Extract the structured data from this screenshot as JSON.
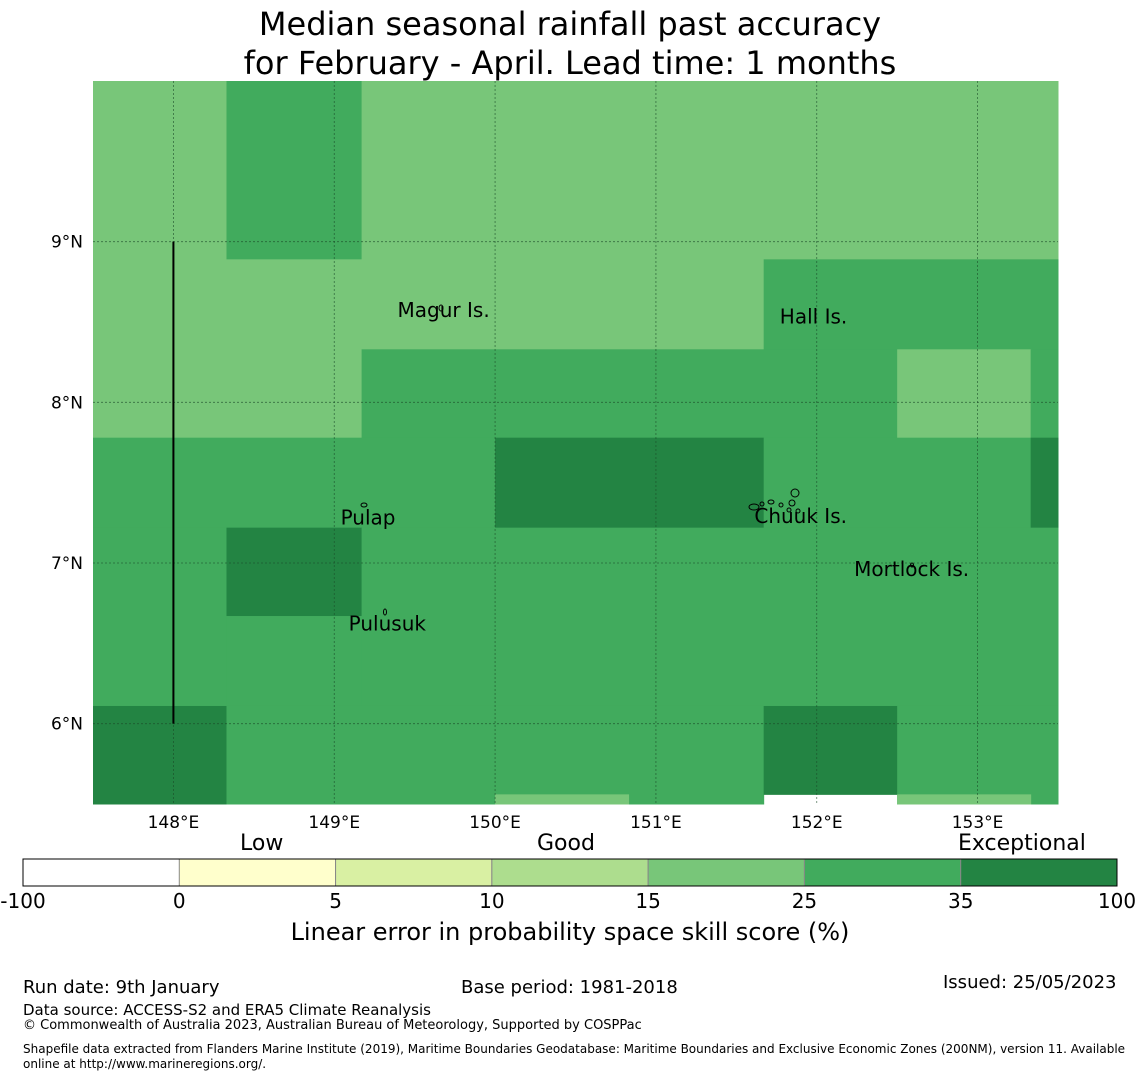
{
  "title": {
    "line1": "Median seasonal rainfall past accuracy",
    "line2": "for February - April. Lead time: 1 months"
  },
  "map": {
    "lon_range": [
      147.5,
      153.5
    ],
    "lat_range": [
      5.5,
      10.0
    ],
    "lon_ticks": [
      148,
      149,
      150,
      151,
      152,
      153
    ],
    "lon_tick_labels": [
      "148°E",
      "149°E",
      "150°E",
      "151°E",
      "152°E",
      "153°E"
    ],
    "lat_ticks": [
      6,
      7,
      8,
      9
    ],
    "lat_tick_labels": [
      "6°N",
      "7°N",
      "8°N",
      "9°N"
    ],
    "colors": {
      "c25": "#78c679",
      "c35": "#41ab5d",
      "c100": "#238443"
    },
    "skill_cells": [
      {
        "lon": [
          147.5,
          148.33
        ],
        "lat": [
          7.78,
          10.0
        ],
        "cls": "c25"
      },
      {
        "lon": [
          148.33,
          149.17
        ],
        "lat": [
          8.89,
          10.0
        ],
        "cls": "c35"
      },
      {
        "lon": [
          148.33,
          149.17
        ],
        "lat": [
          7.78,
          8.89
        ],
        "cls": "c25"
      },
      {
        "lon": [
          149.17,
          153.5
        ],
        "lat": [
          8.89,
          10.0
        ],
        "cls": "c25"
      },
      {
        "lon": [
          149.17,
          151.67
        ],
        "lat": [
          8.33,
          8.89
        ],
        "cls": "c25"
      },
      {
        "lon": [
          151.67,
          153.5
        ],
        "lat": [
          8.33,
          8.89
        ],
        "cls": "c35"
      },
      {
        "lon": [
          149.17,
          152.5
        ],
        "lat": [
          7.78,
          8.33
        ],
        "cls": "c35"
      },
      {
        "lon": [
          152.5,
          153.33
        ],
        "lat": [
          7.78,
          8.33
        ],
        "cls": "c25"
      },
      {
        "lon": [
          153.33,
          153.5
        ],
        "lat": [
          7.78,
          8.33
        ],
        "cls": "c35"
      },
      {
        "lon": [
          147.5,
          150.0
        ],
        "lat": [
          7.22,
          7.78
        ],
        "cls": "c35"
      },
      {
        "lon": [
          150.0,
          151.67
        ],
        "lat": [
          7.22,
          7.78
        ],
        "cls": "c100"
      },
      {
        "lon": [
          151.67,
          153.33
        ],
        "lat": [
          7.22,
          7.78
        ],
        "cls": "c35"
      },
      {
        "lon": [
          153.33,
          153.5
        ],
        "lat": [
          7.22,
          7.78
        ],
        "cls": "c100"
      },
      {
        "lon": [
          147.5,
          148.33
        ],
        "lat": [
          6.11,
          7.22
        ],
        "cls": "c35"
      },
      {
        "lon": [
          148.33,
          149.17
        ],
        "lat": [
          6.67,
          7.22
        ],
        "cls": "c100"
      },
      {
        "lon": [
          148.33,
          149.17
        ],
        "lat": [
          6.11,
          6.67
        ],
        "cls": "c35"
      },
      {
        "lon": [
          149.17,
          153.5
        ],
        "lat": [
          6.11,
          7.22
        ],
        "cls": "c35"
      },
      {
        "lon": [
          147.5,
          148.33
        ],
        "lat": [
          5.5,
          6.11
        ],
        "cls": "c100"
      },
      {
        "lon": [
          148.33,
          151.67
        ],
        "lat": [
          5.5,
          6.11
        ],
        "cls": "c35"
      },
      {
        "lon": [
          151.67,
          152.5
        ],
        "lat": [
          5.56,
          6.11
        ],
        "cls": "c100"
      },
      {
        "lon": [
          152.5,
          153.5
        ],
        "lat": [
          5.5,
          6.11
        ],
        "cls": "c35"
      },
      {
        "lon": [
          150.0,
          150.83
        ],
        "lat": [
          5.5,
          5.56
        ],
        "cls": "c25"
      },
      {
        "lon": [
          152.5,
          153.33
        ],
        "lat": [
          5.5,
          5.56
        ],
        "cls": "c25"
      }
    ],
    "boundary_line": {
      "lon": 148.0,
      "lat": [
        6.0,
        9.0
      ]
    },
    "places": [
      {
        "name": "Magur Is.",
        "lon": 149.68,
        "lat": 8.53
      },
      {
        "name": "Hall Is.",
        "lon": 151.98,
        "lat": 8.49
      },
      {
        "name": "Pulap",
        "lon": 149.21,
        "lat": 7.24
      },
      {
        "name": "Chuuk Is.",
        "lon": 151.9,
        "lat": 7.25
      },
      {
        "name": "Mortlock Is.",
        "lon": 152.59,
        "lat": 6.92
      },
      {
        "name": "Pulusuk",
        "lon": 149.33,
        "lat": 6.58
      }
    ]
  },
  "colorbar": {
    "category_labels": [
      "Low",
      "Good",
      "Exceptional"
    ],
    "ticks": [
      "-100",
      "0",
      "5",
      "10",
      "15",
      "25",
      "35",
      "100"
    ],
    "colors": [
      "#ffffff",
      "#ffffcc",
      "#d9f0a3",
      "#addd8e",
      "#78c679",
      "#41ab5d",
      "#238443"
    ],
    "title": "Linear error in probability space skill score (%)"
  },
  "footer": {
    "run_date": "Run date: 9th January",
    "base_period": "Base period: 1981-2018",
    "issued": "Issued: 25/05/2023",
    "data_source": "Data source: ACCESS-S2 and ERA5 Climate Reanalysis",
    "copyright": "© Commonwealth of Australia 2023, Australian Bureau of Meteorology, Supported by COSPPac",
    "shapefile_line1": "Shapefile data extracted from Flanders Marine Institute (2019), Maritime Boundaries Geodatabase: Maritime Boundaries and Exclusive Economic Zones (200NM), version 11. Available",
    "shapefile_line2": "online at http://www.marineregions.org/."
  }
}
